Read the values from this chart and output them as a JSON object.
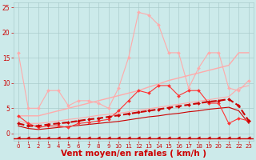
{
  "background_color": "#cceaea",
  "grid_color": "#aacccc",
  "xlabel": "Vent moyen/en rafales ( km/h )",
  "xlabel_color": "#cc0000",
  "xlabel_fontsize": 7.5,
  "xtick_color": "#cc0000",
  "ytick_color": "#cc0000",
  "xlim": [
    -0.5,
    23.5
  ],
  "ylim": [
    -1.5,
    26
  ],
  "yticks": [
    0,
    5,
    10,
    15,
    20,
    25
  ],
  "xticks": [
    0,
    1,
    2,
    3,
    4,
    5,
    6,
    7,
    8,
    9,
    10,
    11,
    12,
    13,
    14,
    15,
    16,
    17,
    18,
    19,
    20,
    21,
    22,
    23
  ],
  "series": [
    {
      "name": "pink_spiky",
      "x": [
        0,
        1,
        2,
        3,
        4,
        5,
        6,
        7,
        8,
        9,
        10,
        11,
        12,
        13,
        14,
        15,
        16,
        17,
        18,
        19,
        20,
        21,
        22,
        23
      ],
      "y": [
        16,
        5,
        5,
        8.5,
        8.5,
        5.5,
        6.5,
        6.5,
        6,
        5,
        9,
        15,
        24,
        23.5,
        21.5,
        16,
        16,
        9,
        13,
        16,
        16,
        9,
        8.5,
        10.5
      ],
      "color": "#ffaaaa",
      "linewidth": 0.8,
      "marker": "D",
      "markersize": 2.0,
      "linestyle": "-",
      "zorder": 3
    },
    {
      "name": "pink_smooth_upper",
      "x": [
        0,
        1,
        2,
        3,
        4,
        5,
        6,
        7,
        8,
        9,
        10,
        11,
        12,
        13,
        14,
        15,
        16,
        17,
        18,
        19,
        20,
        21,
        22,
        23
      ],
      "y": [
        3.5,
        3.5,
        3.5,
        4.0,
        4.5,
        5.0,
        5.5,
        6.0,
        6.5,
        7.0,
        7.5,
        8.0,
        8.5,
        9.2,
        9.8,
        10.5,
        11.0,
        11.5,
        12.0,
        12.5,
        13.0,
        13.5,
        16.0,
        16.0
      ],
      "color": "#ffaaaa",
      "linewidth": 1.0,
      "marker": null,
      "linestyle": "-",
      "zorder": 2
    },
    {
      "name": "pink_smooth_lower",
      "x": [
        0,
        1,
        2,
        3,
        4,
        5,
        6,
        7,
        8,
        9,
        10,
        11,
        12,
        13,
        14,
        15,
        16,
        17,
        18,
        19,
        20,
        21,
        22,
        23
      ],
      "y": [
        2.5,
        2.0,
        2.0,
        2.2,
        2.5,
        2.8,
        3.0,
        3.3,
        3.6,
        3.8,
        4.0,
        4.3,
        4.6,
        4.9,
        5.2,
        5.5,
        5.8,
        6.1,
        6.4,
        6.7,
        7.0,
        7.3,
        9.0,
        9.5
      ],
      "color": "#ffaaaa",
      "linewidth": 0.8,
      "marker": null,
      "linestyle": "-",
      "zorder": 2
    },
    {
      "name": "red_spiky",
      "x": [
        0,
        1,
        2,
        3,
        4,
        5,
        6,
        7,
        8,
        9,
        10,
        11,
        12,
        13,
        14,
        15,
        16,
        17,
        18,
        19,
        20,
        21,
        22,
        23
      ],
      "y": [
        3.5,
        2.0,
        1.2,
        1.5,
        1.5,
        1.2,
        2.0,
        2.2,
        2.5,
        2.8,
        4.5,
        6.5,
        8.5,
        8.0,
        9.5,
        9.5,
        7.5,
        8.5,
        8.5,
        6.0,
        6.0,
        2.0,
        3.0,
        2.5
      ],
      "color": "#ff3333",
      "linewidth": 0.8,
      "marker": "D",
      "markersize": 2.0,
      "linestyle": "-",
      "zorder": 4
    },
    {
      "name": "red_dashed_smooth",
      "x": [
        0,
        1,
        2,
        3,
        4,
        5,
        6,
        7,
        8,
        9,
        10,
        11,
        12,
        13,
        14,
        15,
        16,
        17,
        18,
        19,
        20,
        21,
        22,
        23
      ],
      "y": [
        2.0,
        1.5,
        1.5,
        1.8,
        2.0,
        2.2,
        2.5,
        2.8,
        3.0,
        3.3,
        3.6,
        3.9,
        4.2,
        4.5,
        4.8,
        5.1,
        5.4,
        5.7,
        6.0,
        6.3,
        6.5,
        6.8,
        5.5,
        2.5
      ],
      "color": "#cc0000",
      "linewidth": 1.5,
      "marker": "D",
      "markersize": 2.0,
      "linestyle": "--",
      "zorder": 5
    },
    {
      "name": "red_solid_smooth",
      "x": [
        0,
        1,
        2,
        3,
        4,
        5,
        6,
        7,
        8,
        9,
        10,
        11,
        12,
        13,
        14,
        15,
        16,
        17,
        18,
        19,
        20,
        21,
        22,
        23
      ],
      "y": [
        1.5,
        1.0,
        0.8,
        1.0,
        1.2,
        1.4,
        1.6,
        1.8,
        2.0,
        2.2,
        2.4,
        2.7,
        3.0,
        3.3,
        3.5,
        3.8,
        4.0,
        4.3,
        4.5,
        4.8,
        5.0,
        5.2,
        4.5,
        2.0
      ],
      "color": "#cc0000",
      "linewidth": 0.8,
      "marker": null,
      "linestyle": "-",
      "zorder": 3
    },
    {
      "name": "arrows_bottom",
      "x": [
        0,
        1,
        2,
        3,
        4,
        5,
        6,
        7,
        8,
        9,
        10,
        11,
        12,
        13,
        14,
        15,
        16,
        17,
        18,
        19,
        20,
        21,
        22,
        23
      ],
      "y": [
        -0.8,
        -0.8,
        -0.8,
        -0.8,
        -0.8,
        -0.8,
        -0.8,
        -0.8,
        -0.8,
        -0.8,
        -0.8,
        -0.8,
        -0.8,
        -0.8,
        -0.8,
        -0.8,
        -0.8,
        -0.8,
        -0.8,
        -0.8,
        -0.8,
        -0.8,
        -0.8,
        -0.8
      ],
      "color": "#cc0000",
      "linewidth": 0.5,
      "marker": "<",
      "markersize": 2.5,
      "linestyle": "none",
      "zorder": 6
    }
  ],
  "hline_y": -1.0,
  "hline_color": "#cc0000",
  "hline_lw": 1.0
}
